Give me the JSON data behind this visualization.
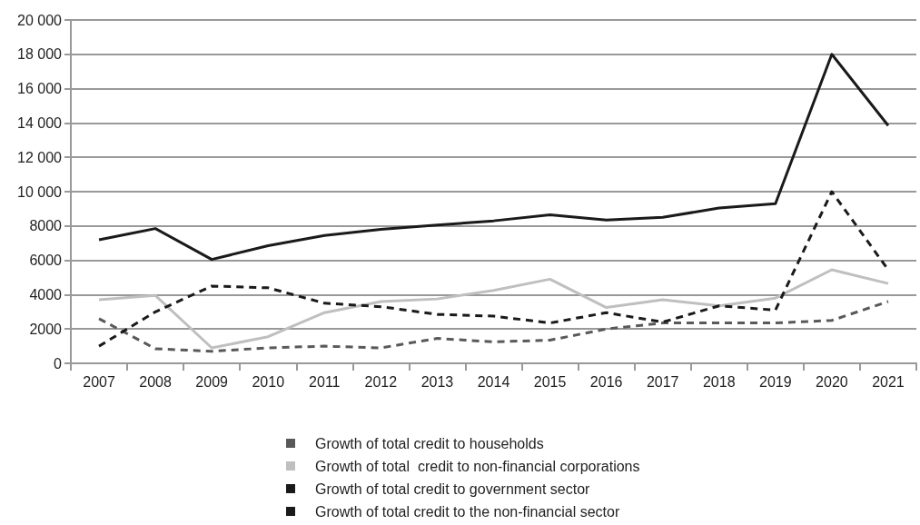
{
  "chart_data": {
    "type": "line",
    "categories": [
      "2007",
      "2008",
      "2009",
      "2010",
      "2011",
      "2012",
      "2013",
      "2014",
      "2015",
      "2016",
      "2017",
      "2018",
      "2019",
      "2020",
      "2021"
    ],
    "series": [
      {
        "name": "Growth of total credit to households",
        "color": "#595959",
        "line_style": "dashed",
        "values": [
          2600,
          850,
          700,
          900,
          1000,
          900,
          1450,
          1250,
          1350,
          2000,
          2350,
          2350,
          2350,
          2500,
          3600
        ]
      },
      {
        "name": "Growth of total  credit to non-financial corporations",
        "color": "#bfbfbf",
        "line_style": "solid",
        "values": [
          3700,
          3950,
          900,
          1550,
          2950,
          3600,
          3750,
          4250,
          4900,
          3250,
          3700,
          3350,
          3800,
          5450,
          4650
        ]
      },
      {
        "name": "Growth of total credit to government sector",
        "color": "#1a1a1a",
        "line_style": "dashed",
        "values": [
          1000,
          3000,
          4500,
          4400,
          3500,
          3300,
          2850,
          2750,
          2350,
          2950,
          2400,
          3350,
          3100,
          10000,
          5450
        ]
      },
      {
        "name": "Growth of total credit to the non-financial sector",
        "color": "#1a1a1a",
        "line_style": "solid",
        "values": [
          7200,
          7850,
          6050,
          6850,
          7450,
          7800,
          8050,
          8300,
          8650,
          8350,
          8500,
          9050,
          9300,
          18000,
          13850
        ]
      }
    ],
    "ylim": [
      0,
      20000
    ],
    "yticks": [
      0,
      2000,
      4000,
      6000,
      8000,
      {
        "value": 10000,
        "label": "10 000"
      },
      {
        "value": 12000,
        "label": "12 000"
      },
      {
        "value": 14000,
        "label": "14 000"
      },
      {
        "value": 16000,
        "label": "16 000"
      },
      {
        "value": 18000,
        "label": "18 000"
      },
      {
        "value": 20000,
        "label": "20 000"
      }
    ],
    "grid": "y",
    "legend": "bottom",
    "marker": "none"
  }
}
